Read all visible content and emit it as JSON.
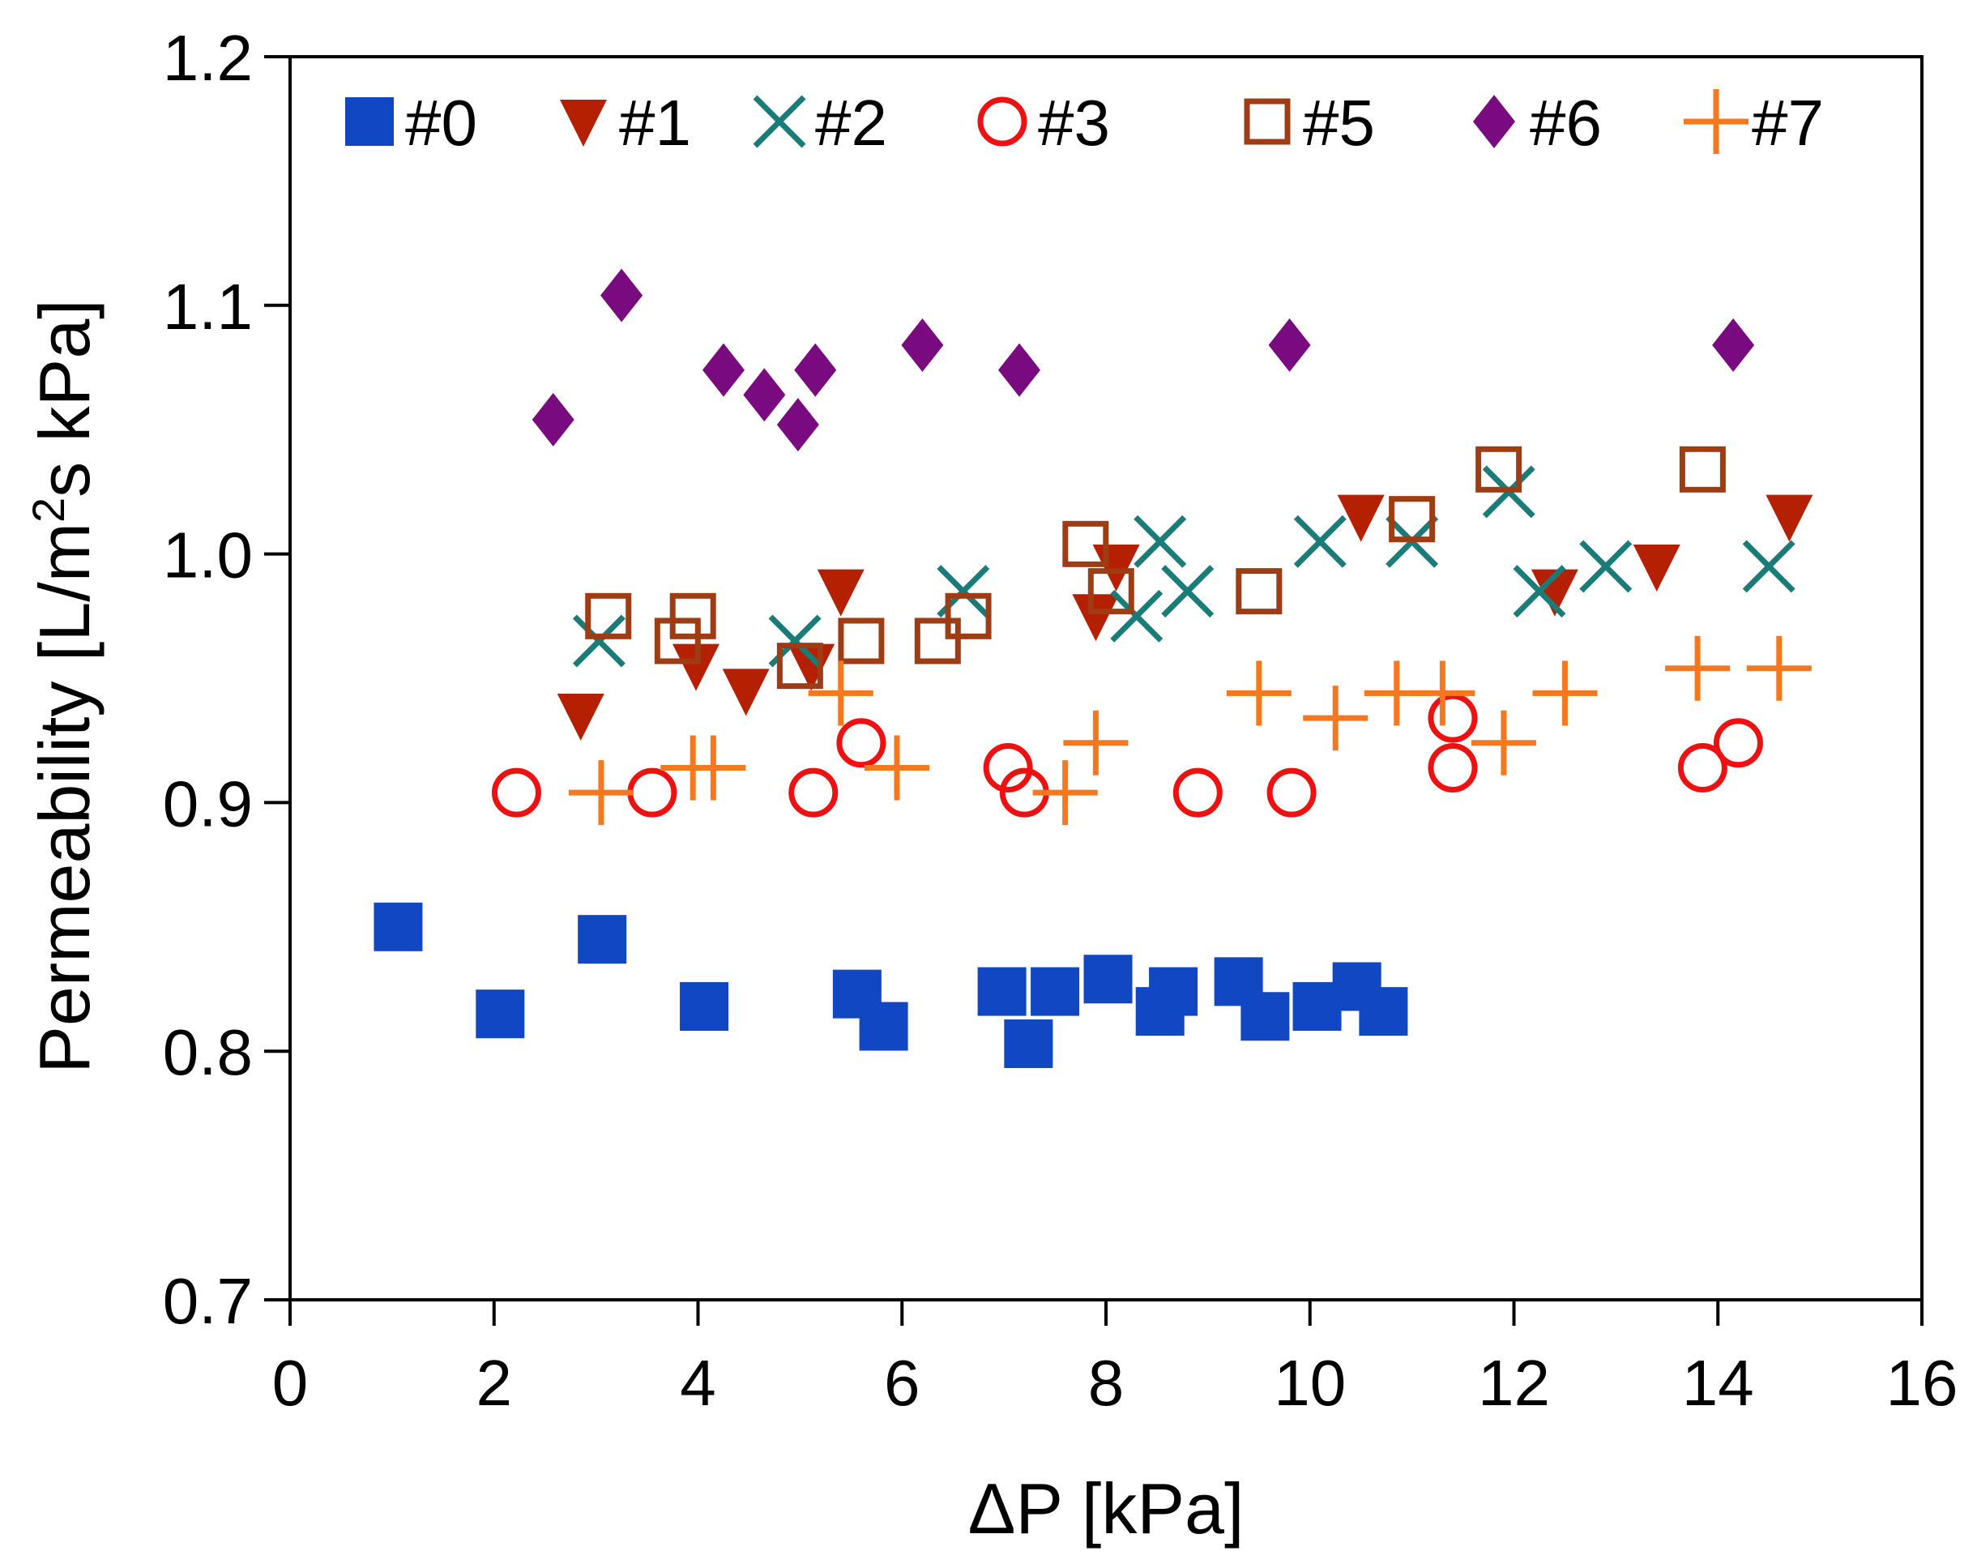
{
  "chart_data": {
    "type": "scatter",
    "title": "",
    "xlabel": "ΔP [kPa]",
    "ylabel_parts": [
      "Permeability [L/m",
      "2",
      "s kPa]"
    ],
    "xlim": [
      0,
      16
    ],
    "ylim": [
      0.7,
      1.2
    ],
    "xticks": [
      0,
      2,
      4,
      6,
      8,
      10,
      12,
      14,
      16
    ],
    "xtick_labels": [
      "0",
      "2",
      "4",
      "6",
      "8",
      "10",
      "12",
      "14",
      "16"
    ],
    "yticks": [
      0.7,
      0.8,
      0.9,
      1.0,
      1.1,
      1.2
    ],
    "ytick_labels": [
      "0.7",
      "0.8",
      "0.9",
      "1.0",
      "1.1",
      "1.2"
    ],
    "legend_position": "top",
    "grid": false,
    "series": [
      {
        "name": "#0",
        "marker": "square-filled",
        "color": "#1247c4",
        "points": [
          [
            1.06,
            0.85
          ],
          [
            2.06,
            0.815
          ],
          [
            3.06,
            0.845
          ],
          [
            4.06,
            0.818
          ],
          [
            5.56,
            0.823
          ],
          [
            5.82,
            0.81
          ],
          [
            6.98,
            0.824
          ],
          [
            7.24,
            0.803
          ],
          [
            7.5,
            0.824
          ],
          [
            8.02,
            0.829
          ],
          [
            8.53,
            0.816
          ],
          [
            8.66,
            0.824
          ],
          [
            9.3,
            0.828
          ],
          [
            9.56,
            0.814
          ],
          [
            10.07,
            0.818
          ],
          [
            10.46,
            0.826
          ],
          [
            10.72,
            0.816
          ]
        ]
      },
      {
        "name": "#1",
        "marker": "triangle-down",
        "color": "#b52003",
        "points": [
          [
            2.85,
            0.935
          ],
          [
            3.98,
            0.955
          ],
          [
            4.47,
            0.945
          ],
          [
            5.11,
            0.955
          ],
          [
            5.4,
            0.985
          ],
          [
            7.9,
            0.975
          ],
          [
            8.1,
            0.995
          ],
          [
            10.5,
            1.015
          ],
          [
            12.4,
            0.985
          ],
          [
            13.4,
            0.995
          ],
          [
            14.7,
            1.015
          ]
        ]
      },
      {
        "name": "#2",
        "marker": "x",
        "color": "#1a7c78",
        "points": [
          [
            3.03,
            0.965
          ],
          [
            4.95,
            0.965
          ],
          [
            6.6,
            0.985
          ],
          [
            8.3,
            0.975
          ],
          [
            8.53,
            1.005
          ],
          [
            8.8,
            0.985
          ],
          [
            10.1,
            1.005
          ],
          [
            11.0,
            1.005
          ],
          [
            11.95,
            1.025
          ],
          [
            12.25,
            0.985
          ],
          [
            12.9,
            0.995
          ],
          [
            14.5,
            0.995
          ]
        ]
      },
      {
        "name": "#3",
        "marker": "circle-open",
        "color": "#ee1111",
        "points": [
          [
            2.22,
            0.904
          ],
          [
            3.55,
            0.904
          ],
          [
            5.13,
            0.904
          ],
          [
            5.6,
            0.924
          ],
          [
            7.04,
            0.914
          ],
          [
            7.2,
            0.904
          ],
          [
            8.9,
            0.904
          ],
          [
            9.82,
            0.904
          ],
          [
            11.4,
            0.934
          ],
          [
            11.4,
            0.914
          ],
          [
            13.85,
            0.914
          ],
          [
            14.2,
            0.924
          ]
        ]
      },
      {
        "name": "#5",
        "marker": "square-open",
        "color": "#9e3c14",
        "points": [
          [
            3.12,
            0.975
          ],
          [
            3.8,
            0.965
          ],
          [
            3.95,
            0.975
          ],
          [
            5.0,
            0.955
          ],
          [
            5.6,
            0.965
          ],
          [
            6.35,
            0.965
          ],
          [
            6.65,
            0.975
          ],
          [
            7.8,
            1.004
          ],
          [
            8.05,
            0.985
          ],
          [
            9.5,
            0.985
          ],
          [
            11.0,
            1.014
          ],
          [
            11.85,
            1.034
          ],
          [
            13.85,
            1.034
          ]
        ]
      },
      {
        "name": "#6",
        "marker": "diamond-filled",
        "color": "#7a0a80",
        "points": [
          [
            2.58,
            1.054
          ],
          [
            3.25,
            1.104
          ],
          [
            4.25,
            1.074
          ],
          [
            4.65,
            1.064
          ],
          [
            4.98,
            1.052
          ],
          [
            5.15,
            1.074
          ],
          [
            6.2,
            1.084
          ],
          [
            7.15,
            1.074
          ],
          [
            9.8,
            1.084
          ],
          [
            14.15,
            1.084
          ]
        ]
      },
      {
        "name": "#7",
        "marker": "plus",
        "color": "#f5781e",
        "points": [
          [
            3.05,
            0.904
          ],
          [
            3.95,
            0.914
          ],
          [
            4.15,
            0.914
          ],
          [
            5.4,
            0.944
          ],
          [
            5.95,
            0.914
          ],
          [
            7.6,
            0.904
          ],
          [
            7.9,
            0.924
          ],
          [
            9.5,
            0.944
          ],
          [
            10.25,
            0.934
          ],
          [
            10.85,
            0.944
          ],
          [
            11.3,
            0.944
          ],
          [
            11.9,
            0.924
          ],
          [
            12.5,
            0.944
          ],
          [
            13.8,
            0.954
          ],
          [
            14.6,
            0.954
          ]
        ]
      }
    ]
  }
}
